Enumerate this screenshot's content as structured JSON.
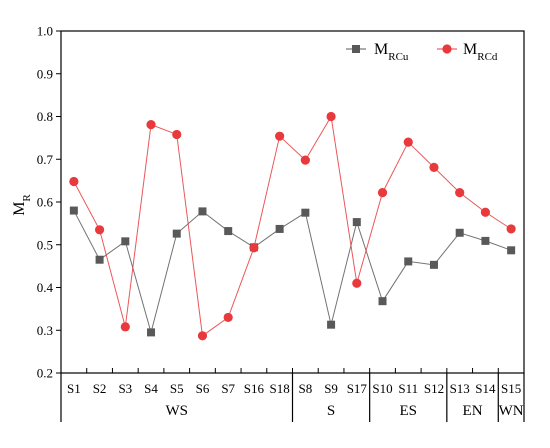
{
  "chart_data": {
    "type": "line",
    "ylabel": "M",
    "ylabel_sub": "R",
    "ylim": [
      0.2,
      1.0
    ],
    "yticks": [
      "0.2",
      "0.3",
      "0.4",
      "0.5",
      "0.6",
      "0.7",
      "0.8",
      "0.9",
      "1.0"
    ],
    "categories": [
      "S1",
      "S2",
      "S3",
      "S4",
      "S5",
      "S6",
      "S7",
      "S16",
      "S18",
      "S8",
      "S9",
      "S17",
      "S10",
      "S11",
      "S12",
      "S13",
      "S14",
      "S15"
    ],
    "groups": [
      {
        "label": "WS",
        "count": 9
      },
      {
        "label": "S",
        "count": 3
      },
      {
        "label": "ES",
        "count": 3
      },
      {
        "label": "EN",
        "count": 2
      },
      {
        "label": "WN",
        "count": 1
      }
    ],
    "legend_position": "top-right",
    "grid": false,
    "series": [
      {
        "name": "M",
        "name_sub": "RCu",
        "color": "#595959",
        "marker": "square",
        "values": [
          0.58,
          0.465,
          0.508,
          0.295,
          0.526,
          0.578,
          0.532,
          0.494,
          0.537,
          0.575,
          0.313,
          0.553,
          0.368,
          0.461,
          0.453,
          0.528,
          0.509,
          0.487
        ]
      },
      {
        "name": "M",
        "name_sub": "RCd",
        "color": "#e8393c",
        "marker": "circle",
        "values": [
          0.648,
          0.535,
          0.308,
          0.781,
          0.758,
          0.287,
          0.33,
          0.493,
          0.754,
          0.698,
          0.8,
          0.41,
          0.622,
          0.74,
          0.681,
          0.622,
          0.576,
          0.537
        ]
      }
    ]
  }
}
